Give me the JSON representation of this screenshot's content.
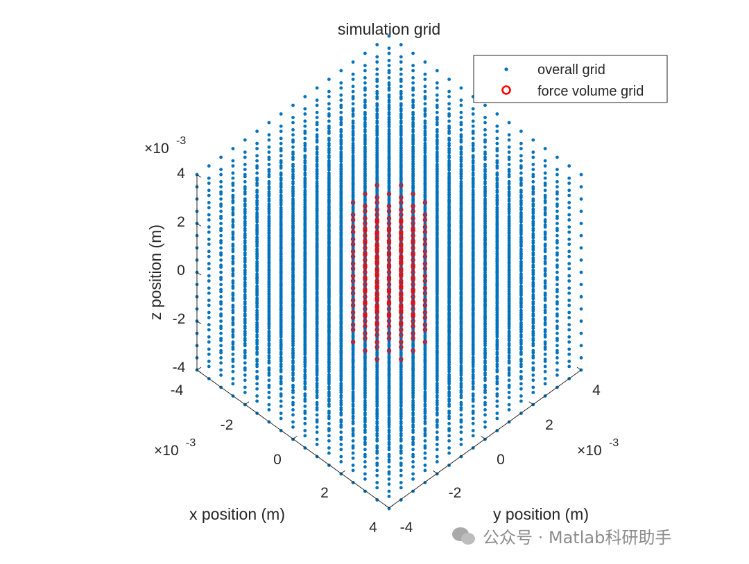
{
  "chart_data": {
    "type": "scatter3d",
    "title": "simulation grid",
    "xlabel": "x position (m)",
    "ylabel": "y position (m)",
    "zlabel": "z position (m)",
    "exponent_label": "×10",
    "exponent_power": "-3",
    "xlim": [
      -0.004,
      0.004
    ],
    "ylim": [
      -0.004,
      0.004
    ],
    "zlim": [
      -0.004,
      0.004
    ],
    "x_ticks": [
      "-4",
      "-2",
      "0",
      "2",
      "4"
    ],
    "y_ticks": [
      "-4",
      "-2",
      "0",
      "2",
      "4"
    ],
    "z_ticks": [
      "4",
      "2",
      "0",
      "-2",
      "-4"
    ],
    "view": "isometric",
    "legend_position": "top-right",
    "series": [
      {
        "name": "overall grid",
        "marker": "dot",
        "color": "#0072BD",
        "shape": "cube",
        "min": -0.004,
        "max": 0.004,
        "points_per_axis": 17
      },
      {
        "name": "force volume grid",
        "marker": "circle",
        "color": "#FF0000",
        "shape": "cylinder",
        "radius": 0.0012,
        "zmin": -0.0025,
        "zmax": 0.0025
      }
    ]
  },
  "watermark": {
    "text": "公众号 · Matlab科研助手",
    "icon": "wechat-icon"
  }
}
